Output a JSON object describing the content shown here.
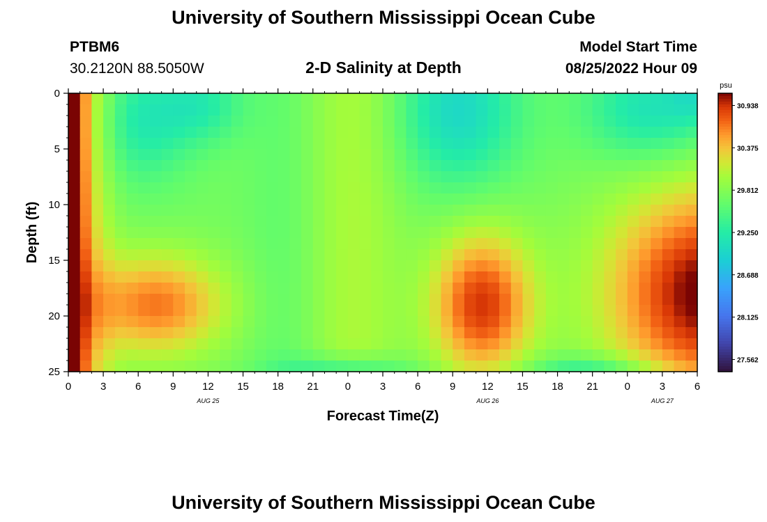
{
  "header": {
    "title": "University of Southern Mississippi Ocean Cube",
    "station_id": "PTBM6",
    "coords": "30.2120N  88.5050W",
    "chart_title": "2-D Salinity at Depth",
    "start_label": "Model Start Time",
    "start_value": "08/25/2022 Hour 09"
  },
  "footer": {
    "title": "University of Southern Mississippi Ocean Cube"
  },
  "chart_data": {
    "type": "heatmap",
    "title": "2-D Salinity at Depth",
    "xlabel": "Forecast Time(Z)",
    "ylabel": "Depth (ft)",
    "x_tick_labels": [
      "0",
      "3",
      "6",
      "9",
      "12",
      "15",
      "18",
      "21",
      "0",
      "3",
      "6",
      "9",
      "12",
      "15",
      "18",
      "21",
      "0",
      "3",
      "6"
    ],
    "x_range_hours": [
      0,
      54
    ],
    "date_labels": [
      {
        "text": "AUG 25",
        "hour": 12
      },
      {
        "text": "AUG 26",
        "hour": 36
      },
      {
        "text": "AUG 27",
        "hour": 51
      }
    ],
    "y_tick_labels": [
      "0",
      "5",
      "10",
      "15",
      "20",
      "25"
    ],
    "y_range_ft": [
      0,
      25
    ],
    "y_reversed": true,
    "colorbar": {
      "unit": "psu",
      "min": 27.4,
      "max": 31.1,
      "tick_labels": [
        "30.938",
        "30.375",
        "29.812",
        "29.250",
        "28.688",
        "28.125",
        "27.562"
      ],
      "colormap": "turbo"
    },
    "approx_features": [
      {
        "region": "surface 3-9h",
        "salinity": 29.1
      },
      {
        "region": "0-25ft 0-1h",
        "salinity": 30.9
      },
      {
        "region": "16-22ft 3-15h",
        "salinity": 30.5
      },
      {
        "region": "0-25ft 17-21h",
        "salinity": 29.7
      },
      {
        "region": "0-8ft 23-26h",
        "salinity": 30.1
      },
      {
        "region": "0-7ft 29-37h",
        "salinity": 29.1
      },
      {
        "region": "15-22ft 31-39h",
        "salinity": 30.8
      },
      {
        "region": "0-5ft 44-53h",
        "salinity": 29.1
      },
      {
        "region": "10-25ft 48-54h",
        "salinity": 31.0
      }
    ]
  }
}
